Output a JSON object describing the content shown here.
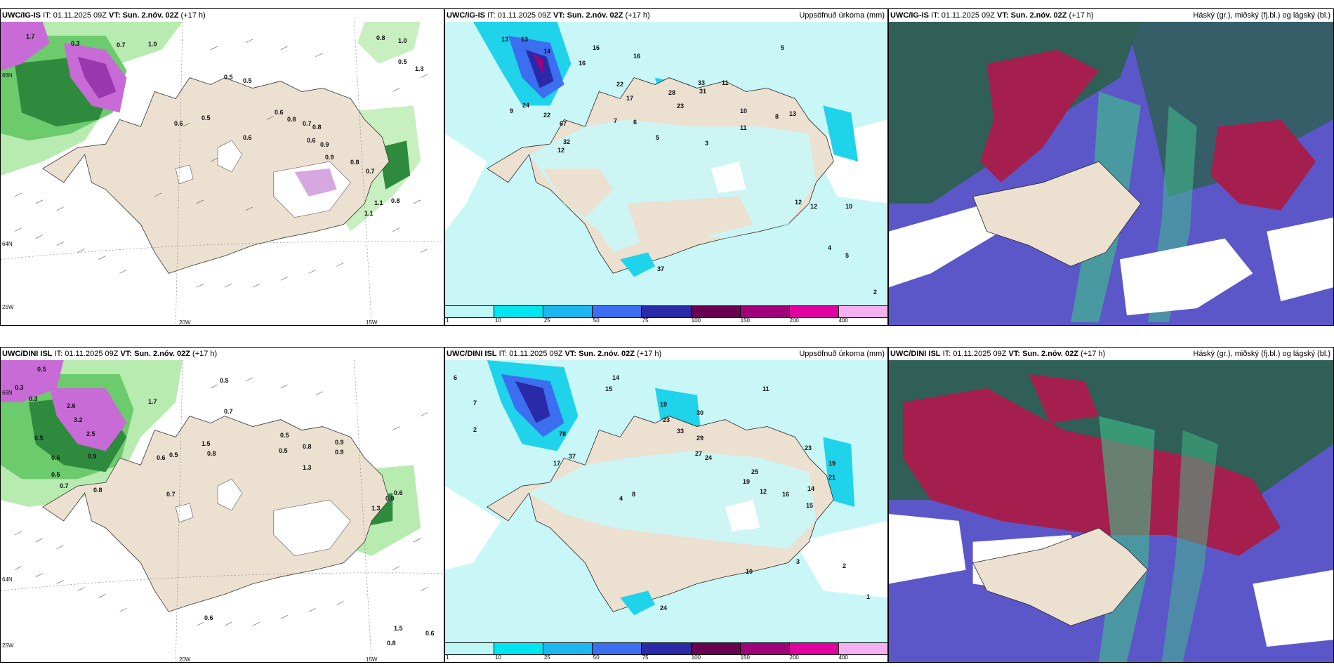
{
  "rows": [
    {
      "panels": [
        {
          "model": "UWC/IG-IS",
          "it": "IT: 01.11.2025 09Z",
          "vt": "VT: Sun. 2.nóv. 02Z",
          "lead": "(+17 h)",
          "right": ""
        },
        {
          "model": "UWC/IG-IS",
          "it": "IT: 01.11.2025 09Z",
          "vt": "VT: Sun. 2.nóv. 02Z",
          "lead": "(+17 h)",
          "right": "Uppsöfnuð úrkoma (mm)"
        },
        {
          "model": "UWC/IG-IS",
          "it": "IT: 01.11.2025 09Z",
          "vt": "VT: Sun. 2.nóv. 02Z",
          "lead": "(+17 h)",
          "right": "Háský (gr.), miðský (fj.bl.) og lágský (bl.)"
        }
      ]
    },
    {
      "panels": [
        {
          "model": "UWC/DINI ISL",
          "it": "IT: 01.11.2025 09Z",
          "vt": "VT: Sun. 2.nóv. 02Z",
          "lead": "(+17 h)",
          "right": ""
        },
        {
          "model": "UWC/DINI ISL",
          "it": "IT: 01.11.2025 09Z",
          "vt": "VT: Sun. 2.nóv. 02Z",
          "lead": "(+17 h)",
          "right": "Uppsöfnuð úrkoma (mm)"
        },
        {
          "model": "UWC/DINI ISL",
          "it": "IT: 01.11.2025 09Z",
          "vt": "VT: Sun. 2.nóv. 02Z",
          "lead": "(+17 h)",
          "right": "Háský (gr.), miðský (fj.bl.) og lágský (bl.)"
        }
      ]
    }
  ],
  "axis_labels": {
    "lon_20w": "20W",
    "lon_15w": "15W",
    "lon_25w": "25W",
    "lat_64n": "64N",
    "lat_66n": "66N"
  },
  "colorbar": {
    "labels": [
      "1",
      "10",
      "25",
      "50",
      "75",
      "100",
      "150",
      "200",
      "400"
    ],
    "colors": [
      "#bff6f6",
      "#00e5ef",
      "#1cb6f0",
      "#3c6ef0",
      "#2a2aa8",
      "#6a0050",
      "#a0007a",
      "#e000a0",
      "#f4b0f0"
    ]
  },
  "colors": {
    "land": "#ece0d1",
    "sea_precip": "#c9f7f7",
    "cloud_high": "#2f5f57",
    "cloud_mid": "#a51f4e",
    "cloud_low": "#5b57c9",
    "green_light": "#a8e6a0",
    "green_dark": "#1e6b2c"
  },
  "top_left_values": [
    "1.7",
    "0.3",
    "0.7",
    "1.0",
    "0.8",
    "1.0",
    "0.5",
    "1.3",
    "0.5",
    "0.5",
    "0.6",
    "0.5",
    "0.6",
    "0.6",
    "0.8",
    "0.7",
    "0.8",
    "0.6",
    "0.9",
    "0.9",
    "0.8",
    "0.7",
    "0.8",
    "1.1",
    "1.1"
  ],
  "top_mid_values": [
    "13",
    "16",
    "16",
    "16",
    "13",
    "14",
    "22",
    "17",
    "28",
    "23",
    "33",
    "31",
    "11",
    "5",
    "9",
    "24",
    "22",
    "67",
    "32",
    "12",
    "7",
    "6",
    "5",
    "3",
    "10",
    "11",
    "8",
    "13",
    "12",
    "12",
    "10",
    "4",
    "5",
    "2",
    "37"
  ],
  "bottom_left_values": [
    "0.5",
    "0.3",
    "0.3",
    "1.7",
    "0.5",
    "2.6",
    "3.2",
    "2.5",
    "0.5",
    "0.6",
    "0.5",
    "0.7",
    "0.8",
    "0.9",
    "0.8",
    "0.5",
    "0.6",
    "0.5",
    "0.9",
    "0.7",
    "1.5",
    "0.7",
    "0.8",
    "0.5",
    "0.9",
    "1.3",
    "0.6",
    "1.3",
    "0.9",
    "0.6",
    "1.5",
    "0.8",
    "0.6"
  ],
  "bottom_mid_values": [
    "6",
    "14",
    "15",
    "7",
    "2",
    "19",
    "23",
    "33",
    "30",
    "29",
    "27",
    "24",
    "78",
    "37",
    "17",
    "25",
    "19",
    "12",
    "16",
    "14",
    "15",
    "19",
    "21",
    "23",
    "10",
    "11",
    "4",
    "8",
    "3",
    "2",
    "1",
    "24"
  ]
}
